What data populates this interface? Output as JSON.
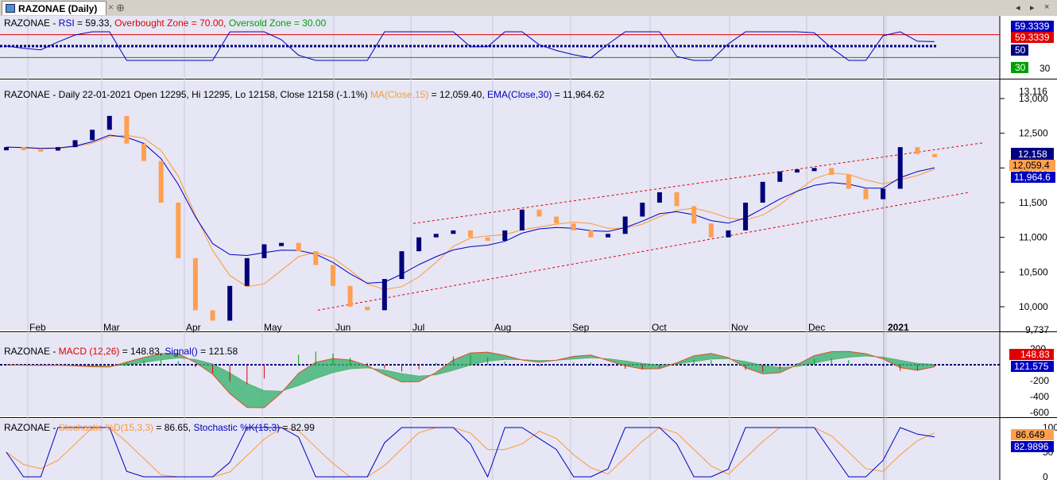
{
  "tab": {
    "title": "RAZONAE (Daily)"
  },
  "rsi": {
    "prefix": "RAZONAE - ",
    "name": "RSI",
    "value_text": " = 59.33, ",
    "ob_text": "Overbought Zone = 70.00, ",
    "os_text": "Oversold Zone = 30.00",
    "badge_value": "59.3339",
    "badge_value2": "59.3339",
    "badge_50": "50",
    "badge_30": "30",
    "axis_30": "30",
    "colors": {
      "rsi": "#0000c0",
      "ob": "#e00000",
      "os": "#00a000",
      "mid": "#000080"
    }
  },
  "price": {
    "header_main": "RAZONAE - Daily 22-01-2021 Open 12295, Hi 12295, Lo 12158, Close 12158 (-1.1%) ",
    "ma_label": "MA(Close,15)",
    "ma_value": " = 12,059.40, ",
    "ema_label": "EMA(Close,30)",
    "ema_value": " = 11,964.62",
    "y_ticks": [
      "13,000",
      "12,500",
      "12,000",
      "11,500",
      "11,000",
      "10,500",
      "10,000"
    ],
    "y_top": "13,116",
    "y_bottom": "9,737",
    "badge_close": "12,158",
    "badge_ma": "12,059.4",
    "badge_ema": "11,964.6",
    "months": [
      "Feb",
      "Mar",
      "Apr",
      "May",
      "Jun",
      "Jul",
      "Aug",
      "Sep",
      "Oct",
      "Nov",
      "Dec",
      "2021"
    ],
    "colors": {
      "up": "#00007a",
      "down": "#ffa050",
      "ma": "#ff9933",
      "ema": "#0000c0",
      "channel": "#e00000"
    }
  },
  "macd": {
    "prefix": "RAZONAE - ",
    "name": "MACD (12,26)",
    "value_text": " = 148.83, ",
    "signal_name": "Signal()",
    "signal_value": " = 121.58",
    "y_ticks": [
      "200",
      "0",
      "-200",
      "-400",
      "-600"
    ],
    "badge_macd": "148.83",
    "badge_signal": "121.575"
  },
  "stoch": {
    "prefix": "RAZONAE - ",
    "d_name": "Stochastic %D(15,3,3)",
    "d_value": " = 86.65, ",
    "k_name": "Stochastic %K(15,3)",
    "k_value": " = 82.99",
    "y_ticks": [
      "100",
      "50",
      "0"
    ],
    "badge_d": "86.649",
    "badge_k": "82.9896"
  },
  "chart_data": {
    "type": "candlestick",
    "title": "RAZONAE - Daily",
    "x_axis": [
      "Feb",
      "Mar",
      "Apr",
      "May",
      "Jun",
      "Jul",
      "Aug",
      "Sep",
      "Oct",
      "Nov",
      "Dec",
      "2021"
    ],
    "price_close_approx": [
      12300,
      12280,
      12250,
      12300,
      12400,
      12550,
      12750,
      12350,
      12100,
      11500,
      10700,
      9950,
      9800,
      10300,
      10700,
      10900,
      10920,
      10800,
      10600,
      10300,
      10000,
      9950,
      10400,
      10800,
      11000,
      11050,
      11100,
      11000,
      10950,
      11100,
      11400,
      11300,
      11200,
      11100,
      11000,
      11050,
      11300,
      11500,
      11650,
      11450,
      11200,
      11000,
      11100,
      11500,
      11800,
      11950,
      11980,
      12000,
      11900,
      11700,
      11550,
      11700,
      12300,
      12200,
      12158
    ],
    "ylim": [
      9737,
      13116
    ],
    "last": {
      "open": 12295,
      "high": 12295,
      "low": 12158,
      "close": 12158,
      "change_pct": -1.1,
      "date": "22-01-2021"
    },
    "ma15_last": 12059.4,
    "ema30_last": 11964.62,
    "rsi": {
      "last": 59.33,
      "overbought": 70.0,
      "oversold": 30.0
    },
    "macd": {
      "last": 148.83,
      "signal_last": 121.58,
      "ylim": [
        -650,
        220
      ]
    },
    "stochastic": {
      "d_last": 86.65,
      "k_last": 82.99,
      "ylim": [
        0,
        100
      ]
    }
  }
}
